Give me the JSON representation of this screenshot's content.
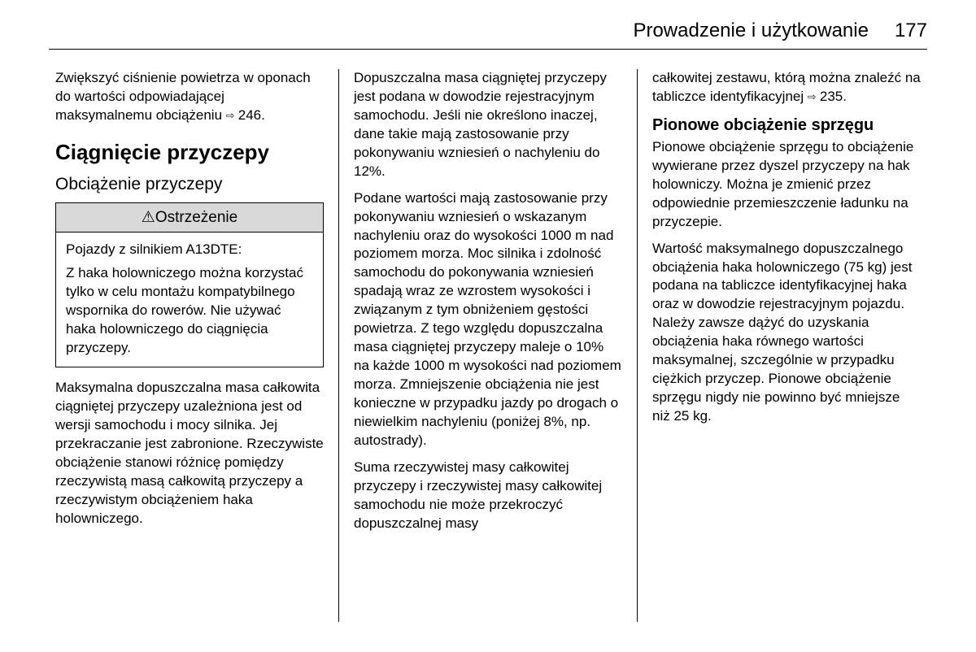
{
  "header": {
    "title": "Prowadzenie i użytkowanie",
    "page_number": "177"
  },
  "col1": {
    "p1": "Zwiększyć ciśnienie powietrza w oponach do wartości odpowiadającej maksymalnemu obciążeniu ",
    "p1_refnum": "246.",
    "h1": "Ciągnięcie przyczepy",
    "h2": "Obciążenie przyczepy",
    "warn_title": "Ostrzeżenie",
    "warn_p1": "Pojazdy z silnikiem A13DTE:",
    "warn_p2": "Z haka holowniczego można korzystać tylko w celu montażu kompatybilnego wspornika do rowerów. Nie używać haka holowniczego do ciągnięcia przyczepy.",
    "p2": "Maksymalna dopuszczalna masa całkowita ciągniętej przyczepy uzależniona jest od wersji samochodu i mocy silnika. Jej przekraczanie jest zabronione. Rzeczywiste obciążenie stanowi różnicę pomiędzy rzeczywistą masą całkowitą przyczepy a rzeczywistym obciążeniem haka holowniczego."
  },
  "col2": {
    "p1": "Dopuszczalna masa ciągniętej przyczepy jest podana w dowodzie rejestracyjnym samochodu. Jeśli nie określono inaczej, dane takie mają zastosowanie przy pokonywaniu wzniesień o nachyleniu do 12%.",
    "p2": "Podane wartości mają zastosowanie przy pokonywaniu wzniesień o wskazanym nachyleniu oraz do wysokości 1000 m nad poziomem morza. Moc silnika i zdolność samochodu do pokonywania wzniesień spadają wraz ze wzrostem wysokości i związanym z tym obniżeniem gęstości powietrza. Z tego względu dopuszczalna masa ciągniętej przyczepy maleje o 10% na każde 1000 m wysokości nad poziomem morza. Zmniejszenie obciążenia nie jest konieczne w przypadku jazdy po drogach o niewielkim nachyleniu (poniżej 8%, np. autostrady).",
    "p3": "Suma rzeczywistej masy całkowitej przyczepy i rzeczywistej masy całkowitej samochodu nie może przekroczyć dopuszczalnej masy"
  },
  "col3": {
    "p1a": "całkowitej zestawu, którą można znaleźć na tabliczce identyfikacyjnej ",
    "p1_refnum": "235.",
    "h2b": "Pionowe obciążenie sprzęgu",
    "p2": "Pionowe obciążenie sprzęgu to obciążenie wywierane przez dyszel przyczepy na hak holowniczy. Można je zmienić przez odpowiednie przemieszczenie ładunku na przyczepie.",
    "p3": "Wartość maksymalnego dopuszczalnego obciążenia haka holowniczego (75 kg) jest podana na tabliczce identyfikacyjnej haka oraz w dowodzie rejestracyjnym pojazdu. Należy zawsze dążyć do uzyskania obciążenia haka równego wartości maksymalnej, szczególnie w przypadku ciężkich przyczep. Pionowe obciążenie sprzęgu nigdy nie powinno być mniejsze niż 25 kg."
  },
  "icons": {
    "ref_arrow": "⇨",
    "warn_triangle": "⚠"
  }
}
